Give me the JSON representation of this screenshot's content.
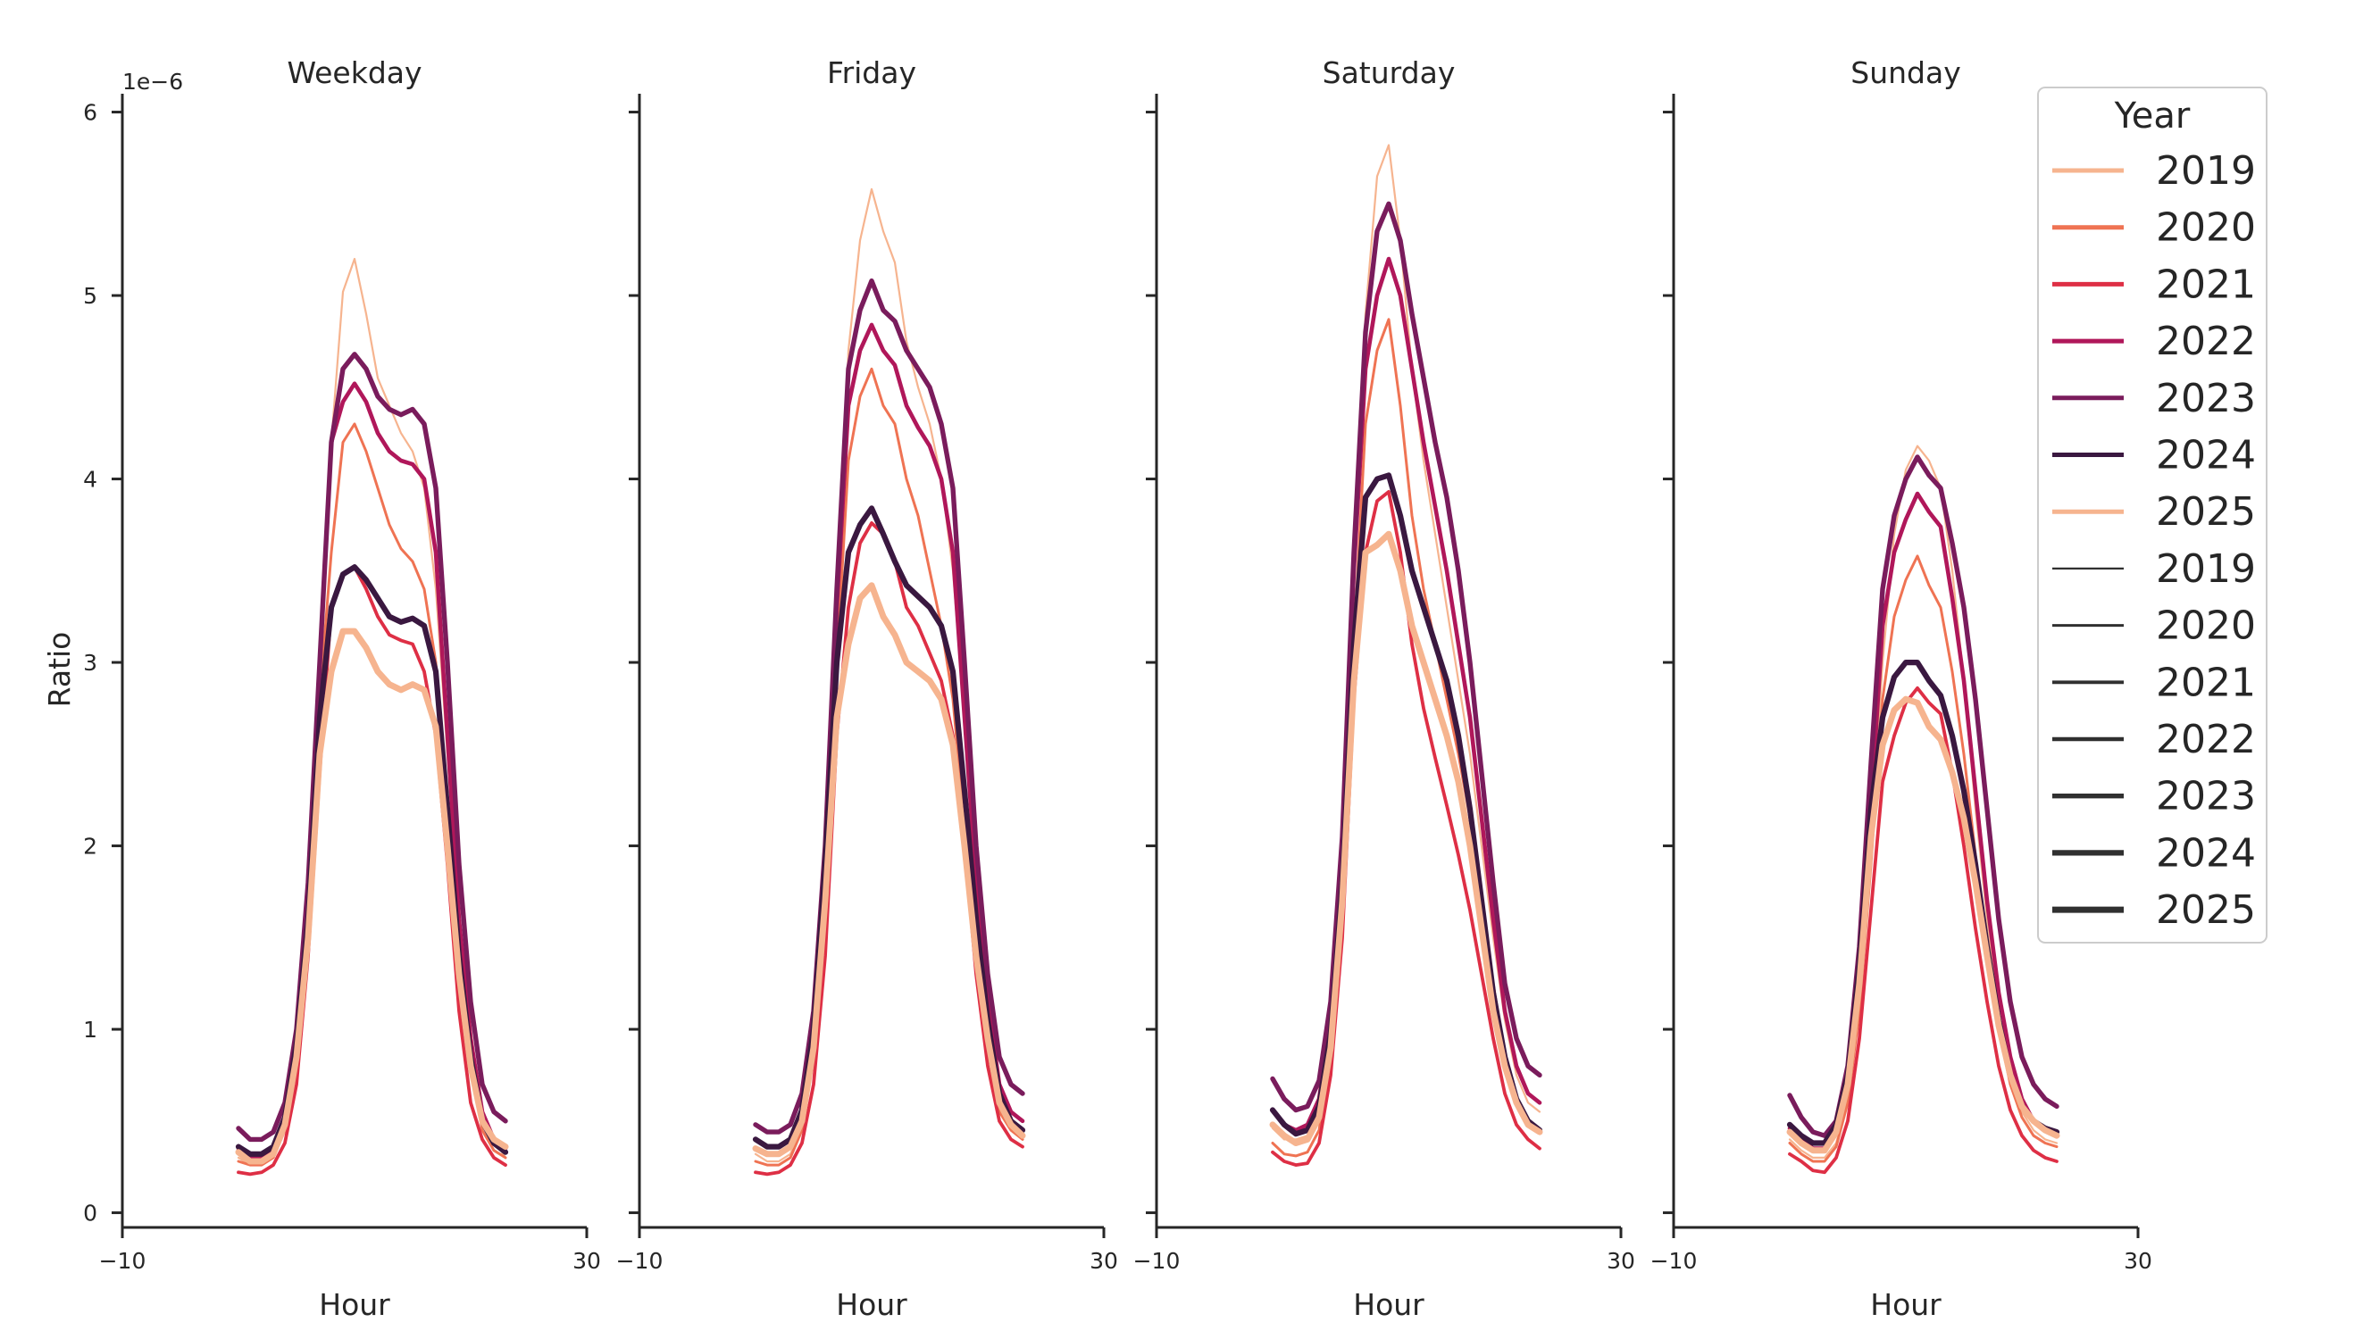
{
  "chart_data": {
    "type": "line",
    "ylabel": "Ratio",
    "y_offset_text": "1e−6",
    "ylim": [
      -0.08,
      6.1
    ],
    "yticks": [
      "0",
      "1",
      "2",
      "3",
      "4",
      "5",
      "6"
    ],
    "xlim": [
      -10,
      30
    ],
    "xticks": [
      "−10",
      "30"
    ],
    "xlabel": "Hour",
    "hours": [
      0,
      1,
      2,
      3,
      4,
      5,
      6,
      7,
      8,
      9,
      10,
      11,
      12,
      13,
      14,
      15,
      16,
      17,
      18,
      19,
      20,
      21,
      22,
      23
    ],
    "legend": {
      "title": "Year",
      "location": "upper right",
      "color_entries": [
        "2019",
        "2020",
        "2021",
        "2022",
        "2023",
        "2024",
        "2025"
      ],
      "size_entries": [
        "2019",
        "2020",
        "2021",
        "2022",
        "2023",
        "2024",
        "2025"
      ]
    },
    "series_colors": {
      "2019": "#f6b48f",
      "2020": "#ef7353",
      "2021": "#de2f45",
      "2022": "#b0175a",
      "2023": "#7a1c5c",
      "2024": "#3a1840",
      "2025": "#f6b48f"
    },
    "size_color": "#303030",
    "panels": [
      {
        "title": "Weekday",
        "series": [
          {
            "name": "2019",
            "values": [
              0.3,
              0.26,
              0.26,
              0.3,
              0.45,
              0.85,
              1.6,
              2.8,
              4.2,
              5.02,
              5.2,
              4.9,
              4.55,
              4.4,
              4.25,
              4.15,
              3.95,
              3.4,
              2.5,
              1.6,
              1.0,
              0.55,
              0.4,
              0.3
            ]
          },
          {
            "name": "2020",
            "values": [
              0.28,
              0.26,
              0.26,
              0.3,
              0.45,
              0.85,
              1.6,
              2.8,
              3.6,
              4.2,
              4.3,
              4.15,
              3.95,
              3.75,
              3.62,
              3.55,
              3.4,
              3.0,
              2.2,
              1.4,
              0.85,
              0.45,
              0.34,
              0.3
            ]
          },
          {
            "name": "2021",
            "values": [
              0.22,
              0.21,
              0.22,
              0.26,
              0.38,
              0.7,
              1.4,
              2.4,
              3.3,
              3.48,
              3.52,
              3.4,
              3.25,
              3.15,
              3.12,
              3.1,
              2.95,
              2.6,
              1.9,
              1.1,
              0.6,
              0.4,
              0.3,
              0.26
            ]
          },
          {
            "name": "2022",
            "values": [
              0.35,
              0.3,
              0.3,
              0.34,
              0.5,
              0.95,
              1.8,
              3.0,
              4.2,
              4.42,
              4.52,
              4.42,
              4.25,
              4.15,
              4.1,
              4.08,
              4.0,
              3.6,
              2.6,
              1.6,
              0.95,
              0.55,
              0.4,
              0.35
            ]
          },
          {
            "name": "2023",
            "values": [
              0.46,
              0.4,
              0.4,
              0.44,
              0.6,
              1.0,
              1.8,
              3.0,
              4.2,
              4.6,
              4.68,
              4.6,
              4.45,
              4.38,
              4.35,
              4.38,
              4.3,
              3.95,
              3.0,
              1.9,
              1.15,
              0.7,
              0.55,
              0.5
            ]
          },
          {
            "name": "2024",
            "values": [
              0.36,
              0.32,
              0.32,
              0.36,
              0.52,
              0.92,
              1.6,
              2.7,
              3.3,
              3.48,
              3.52,
              3.45,
              3.35,
              3.25,
              3.22,
              3.24,
              3.2,
              2.95,
              2.2,
              1.4,
              0.85,
              0.5,
              0.38,
              0.33
            ]
          },
          {
            "name": "2025",
            "values": [
              0.33,
              0.28,
              0.28,
              0.32,
              0.48,
              0.85,
              1.5,
              2.5,
              2.95,
              3.17,
              3.17,
              3.08,
              2.95,
              2.88,
              2.85,
              2.88,
              2.85,
              2.65,
              2.0,
              1.3,
              0.8,
              0.5,
              0.4,
              0.36
            ]
          }
        ]
      },
      {
        "title": "Friday",
        "series": [
          {
            "name": "2019",
            "values": [
              0.32,
              0.28,
              0.28,
              0.32,
              0.48,
              0.9,
              1.8,
              3.2,
              4.7,
              5.3,
              5.58,
              5.35,
              5.18,
              4.75,
              4.5,
              4.3,
              4.0,
              3.5,
              2.7,
              1.8,
              1.1,
              0.65,
              0.5,
              0.45
            ]
          },
          {
            "name": "2020",
            "values": [
              0.28,
              0.26,
              0.26,
              0.3,
              0.45,
              0.85,
              1.7,
              3.0,
              4.1,
              4.45,
              4.6,
              4.4,
              4.3,
              4.0,
              3.8,
              3.5,
              3.2,
              2.8,
              2.1,
              1.4,
              0.9,
              0.55,
              0.45,
              0.4
            ]
          },
          {
            "name": "2021",
            "values": [
              0.22,
              0.21,
              0.22,
              0.26,
              0.38,
              0.7,
              1.4,
              2.6,
              3.3,
              3.65,
              3.76,
              3.7,
              3.55,
              3.3,
              3.2,
              3.05,
              2.9,
              2.6,
              2.0,
              1.3,
              0.8,
              0.5,
              0.4,
              0.36
            ]
          },
          {
            "name": "2022",
            "values": [
              0.4,
              0.36,
              0.36,
              0.4,
              0.56,
              1.0,
              1.9,
              3.3,
              4.4,
              4.7,
              4.84,
              4.7,
              4.62,
              4.4,
              4.28,
              4.18,
              4.0,
              3.6,
              2.7,
              1.8,
              1.15,
              0.7,
              0.55,
              0.5
            ]
          },
          {
            "name": "2023",
            "values": [
              0.48,
              0.44,
              0.44,
              0.48,
              0.65,
              1.1,
              2.0,
              3.4,
              4.6,
              4.92,
              5.08,
              4.92,
              4.86,
              4.7,
              4.6,
              4.5,
              4.3,
              3.95,
              3.0,
              2.0,
              1.3,
              0.85,
              0.7,
              0.65
            ]
          },
          {
            "name": "2024",
            "values": [
              0.4,
              0.36,
              0.36,
              0.4,
              0.56,
              1.0,
              1.9,
              3.0,
              3.6,
              3.75,
              3.84,
              3.7,
              3.55,
              3.42,
              3.36,
              3.3,
              3.2,
              2.95,
              2.3,
              1.6,
              1.05,
              0.65,
              0.5,
              0.45
            ]
          },
          {
            "name": "2025",
            "values": [
              0.35,
              0.32,
              0.32,
              0.36,
              0.5,
              0.9,
              1.7,
              2.7,
              3.1,
              3.35,
              3.42,
              3.25,
              3.15,
              3.0,
              2.95,
              2.9,
              2.8,
              2.55,
              2.0,
              1.4,
              0.95,
              0.6,
              0.48,
              0.42
            ]
          }
        ]
      },
      {
        "title": "Saturday",
        "series": [
          {
            "name": "2019",
            "values": [
              0.46,
              0.4,
              0.4,
              0.42,
              0.55,
              0.95,
              1.8,
              3.4,
              4.9,
              5.65,
              5.82,
              5.3,
              4.6,
              4.1,
              3.7,
              3.3,
              2.9,
              2.5,
              2.0,
              1.5,
              1.05,
              0.75,
              0.6,
              0.55
            ]
          },
          {
            "name": "2020",
            "values": [
              0.38,
              0.32,
              0.31,
              0.33,
              0.45,
              0.85,
              1.7,
              3.1,
              4.3,
              4.7,
              4.87,
              4.4,
              3.8,
              3.4,
              3.1,
              2.8,
              2.5,
              2.15,
              1.7,
              1.25,
              0.85,
              0.62,
              0.5,
              0.45
            ]
          },
          {
            "name": "2021",
            "values": [
              0.33,
              0.28,
              0.26,
              0.27,
              0.38,
              0.75,
              1.5,
              2.8,
              3.6,
              3.88,
              3.93,
              3.6,
              3.1,
              2.75,
              2.48,
              2.22,
              1.95,
              1.65,
              1.3,
              0.95,
              0.65,
              0.48,
              0.4,
              0.35
            ]
          },
          {
            "name": "2022",
            "values": [
              0.56,
              0.48,
              0.45,
              0.48,
              0.62,
              1.05,
              1.95,
              3.5,
              4.6,
              5.0,
              5.2,
              5.0,
              4.6,
              4.2,
              3.85,
              3.5,
              3.1,
              2.7,
              2.15,
              1.6,
              1.1,
              0.8,
              0.65,
              0.6
            ]
          },
          {
            "name": "2023",
            "values": [
              0.73,
              0.62,
              0.56,
              0.58,
              0.72,
              1.15,
              2.05,
              3.6,
              4.8,
              5.35,
              5.5,
              5.3,
              4.9,
              4.55,
              4.2,
              3.9,
              3.5,
              3.0,
              2.4,
              1.8,
              1.25,
              0.95,
              0.8,
              0.75
            ]
          },
          {
            "name": "2024",
            "values": [
              0.56,
              0.48,
              0.43,
              0.45,
              0.58,
              0.98,
              1.8,
              3.1,
              3.9,
              4.0,
              4.02,
              3.8,
              3.5,
              3.3,
              3.1,
              2.9,
              2.6,
              2.2,
              1.7,
              1.2,
              0.85,
              0.62,
              0.5,
              0.45
            ]
          },
          {
            "name": "2025",
            "values": [
              0.48,
              0.42,
              0.38,
              0.4,
              0.52,
              0.9,
              1.7,
              2.9,
              3.6,
              3.64,
              3.7,
              3.5,
              3.2,
              3.0,
              2.8,
              2.6,
              2.35,
              2.0,
              1.55,
              1.1,
              0.8,
              0.6,
              0.48,
              0.44
            ]
          }
        ]
      },
      {
        "title": "Sunday",
        "series": [
          {
            "name": "2019",
            "values": [
              0.4,
              0.34,
              0.3,
              0.3,
              0.38,
              0.62,
              1.15,
              2.0,
              3.0,
              3.7,
              4.05,
              4.18,
              4.1,
              3.95,
              3.5,
              2.9,
              2.2,
              1.6,
              1.1,
              0.75,
              0.55,
              0.45,
              0.4,
              0.38
            ]
          },
          {
            "name": "2020",
            "values": [
              0.38,
              0.32,
              0.28,
              0.28,
              0.36,
              0.6,
              1.1,
              1.9,
              2.8,
              3.25,
              3.45,
              3.58,
              3.42,
              3.3,
              2.95,
              2.5,
              1.95,
              1.45,
              1.0,
              0.7,
              0.52,
              0.42,
              0.38,
              0.36
            ]
          },
          {
            "name": "2021",
            "values": [
              0.32,
              0.28,
              0.23,
              0.22,
              0.3,
              0.5,
              0.95,
              1.65,
              2.35,
              2.6,
              2.78,
              2.86,
              2.78,
              2.72,
              2.4,
              2.0,
              1.55,
              1.15,
              0.8,
              0.56,
              0.42,
              0.34,
              0.3,
              0.28
            ]
          },
          {
            "name": "2022",
            "values": [
              0.46,
              0.4,
              0.35,
              0.35,
              0.44,
              0.7,
              1.3,
              2.2,
              3.2,
              3.6,
              3.78,
              3.92,
              3.82,
              3.74,
              3.35,
              2.9,
              2.3,
              1.7,
              1.2,
              0.85,
              0.62,
              0.5,
              0.45,
              0.42
            ]
          },
          {
            "name": "2023",
            "values": [
              0.64,
              0.52,
              0.44,
              0.42,
              0.5,
              0.8,
              1.45,
              2.45,
              3.4,
              3.8,
              4.0,
              4.12,
              4.02,
              3.95,
              3.65,
              3.3,
              2.8,
              2.2,
              1.6,
              1.15,
              0.85,
              0.7,
              0.62,
              0.58
            ]
          },
          {
            "name": "2024",
            "values": [
              0.48,
              0.42,
              0.38,
              0.38,
              0.48,
              0.75,
              1.35,
              2.2,
              2.7,
              2.92,
              3.0,
              3.0,
              2.9,
              2.82,
              2.6,
              2.3,
              1.9,
              1.45,
              1.05,
              0.75,
              0.58,
              0.5,
              0.46,
              0.44
            ]
          },
          {
            "name": "2025",
            "values": [
              0.44,
              0.38,
              0.34,
              0.34,
              0.44,
              0.7,
              1.25,
              2.05,
              2.55,
              2.74,
              2.8,
              2.78,
              2.65,
              2.58,
              2.4,
              2.15,
              1.8,
              1.4,
              1.02,
              0.75,
              0.58,
              0.5,
              0.45,
              0.42
            ]
          }
        ]
      }
    ]
  }
}
